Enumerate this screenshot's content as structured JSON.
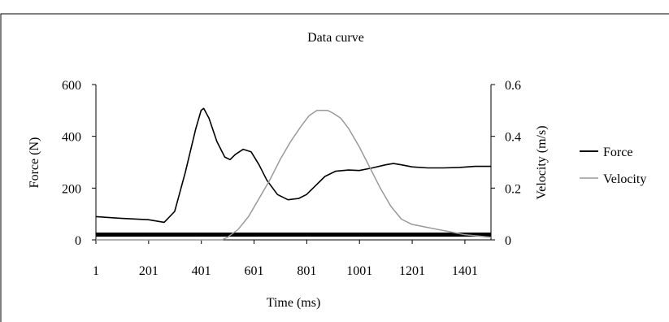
{
  "chart_data": {
    "type": "line",
    "title": "Data curve",
    "xlabel": "Time (ms)",
    "ylabel_left": "Force (N)",
    "ylabel_right": "Velocity (m/s)",
    "x_ticks": [
      "1",
      "201",
      "401",
      "601",
      "801",
      "1001",
      "1201",
      "1401"
    ],
    "y_left_ticks": [
      "0",
      "200",
      "400",
      "600"
    ],
    "y_right_ticks": [
      "0",
      "0.2",
      "0.4",
      "0.6"
    ],
    "xlim": [
      1,
      1500
    ],
    "ylim_left": [
      0,
      600
    ],
    "ylim_right": [
      0,
      0.6
    ],
    "grid": false,
    "legend_position": "right",
    "series": [
      {
        "name": "Force",
        "axis": "left",
        "color": "#000000",
        "x": [
          1,
          100,
          200,
          260,
          300,
          340,
          380,
          400,
          410,
          430,
          460,
          490,
          510,
          530,
          560,
          590,
          620,
          650,
          690,
          730,
          770,
          800,
          830,
          870,
          910,
          960,
          1000,
          1050,
          1100,
          1130,
          1160,
          1200,
          1260,
          1320,
          1380,
          1440,
          1500
        ],
        "values": [
          90,
          83,
          78,
          68,
          110,
          260,
          430,
          500,
          508,
          470,
          380,
          320,
          310,
          330,
          350,
          340,
          290,
          230,
          175,
          155,
          160,
          175,
          205,
          245,
          265,
          270,
          268,
          278,
          290,
          295,
          290,
          282,
          278,
          278,
          280,
          284,
          284
        ]
      },
      {
        "name": "Velocity",
        "axis": "right",
        "color": "#999999",
        "x": [
          1,
          480,
          500,
          540,
          580,
          620,
          660,
          700,
          740,
          780,
          810,
          840,
          860,
          880,
          900,
          930,
          960,
          1000,
          1040,
          1080,
          1120,
          1160,
          1200,
          1250,
          1300,
          1350,
          1400,
          1450,
          1500
        ],
        "values": [
          0,
          0,
          0.01,
          0.04,
          0.09,
          0.16,
          0.23,
          0.31,
          0.38,
          0.44,
          0.48,
          0.5,
          0.5,
          0.5,
          0.49,
          0.47,
          0.43,
          0.36,
          0.28,
          0.2,
          0.13,
          0.08,
          0.06,
          0.05,
          0.04,
          0.03,
          0.02,
          0.015,
          0.01
        ]
      }
    ]
  }
}
